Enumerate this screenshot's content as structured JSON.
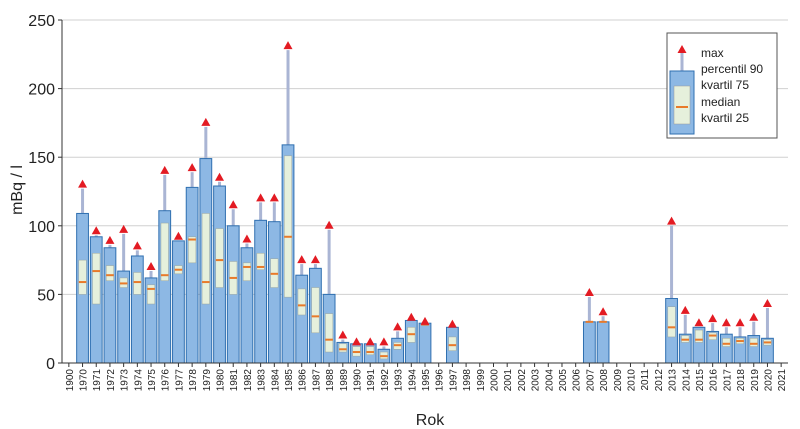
{
  "chart_data": {
    "type": "box",
    "ylabel": "mBq / l",
    "xlabel": "Rok",
    "ylim": [
      0,
      250
    ],
    "yticks": [
      0,
      50,
      100,
      150,
      200,
      250
    ],
    "categories": [
      "1900",
      "1970",
      "1971",
      "1972",
      "1973",
      "1974",
      "1975",
      "1976",
      "1977",
      "1978",
      "1979",
      "1980",
      "1981",
      "1982",
      "1983",
      "1984",
      "1985",
      "1986",
      "1987",
      "1988",
      "1989",
      "1990",
      "1991",
      "1992",
      "1993",
      "1994",
      "1995",
      "1996",
      "1997",
      "1998",
      "1999",
      "2000",
      "2001",
      "2002",
      "2003",
      "2004",
      "2005",
      "2006",
      "2007",
      "2008",
      "2009",
      "2010",
      "2011",
      "2012",
      "2013",
      "2014",
      "2015",
      "2016",
      "2017",
      "2018",
      "2019",
      "2020",
      "2021"
    ],
    "legend": {
      "position": "top-right",
      "entries": [
        "max",
        "percentil 90",
        "kvartil 75",
        "median",
        "kvartil 25"
      ]
    },
    "series": [
      {
        "year": "1970",
        "max": 130,
        "p90": 109,
        "q75": 75,
        "median": 59,
        "q25": 50
      },
      {
        "year": "1971",
        "max": 96,
        "p90": 92,
        "q75": 80,
        "median": 67,
        "q25": 43
      },
      {
        "year": "1972",
        "max": 89,
        "p90": 84,
        "q75": 71,
        "median": 64,
        "q25": 60
      },
      {
        "year": "1973",
        "max": 97,
        "p90": 67,
        "q75": 62,
        "median": 58,
        "q25": 55
      },
      {
        "year": "1974",
        "max": 85,
        "p90": 78,
        "q75": 66,
        "median": 59,
        "q25": 50
      },
      {
        "year": "1975",
        "max": 70,
        "p90": 62,
        "q75": 57,
        "median": 54,
        "q25": 43
      },
      {
        "year": "1976",
        "max": 140,
        "p90": 111,
        "q75": 102,
        "median": 64,
        "q25": 60
      },
      {
        "year": "1977",
        "max": 92,
        "p90": 89,
        "q75": 71,
        "median": 68,
        "q25": 65
      },
      {
        "year": "1978",
        "max": 142,
        "p90": 128,
        "q75": 92,
        "median": 90,
        "q25": 73
      },
      {
        "year": "1979",
        "max": 175,
        "p90": 149,
        "q75": 109,
        "median": 59,
        "q25": 43
      },
      {
        "year": "1980",
        "max": 135,
        "p90": 129,
        "q75": 98,
        "median": 75,
        "q25": 55
      },
      {
        "year": "1981",
        "max": 115,
        "p90": 100,
        "q75": 74,
        "median": 62,
        "q25": 50
      },
      {
        "year": "1982",
        "max": 90,
        "p90": 84,
        "q75": 73,
        "median": 70,
        "q25": 60
      },
      {
        "year": "1983",
        "max": 120,
        "p90": 104,
        "q75": 80,
        "median": 70,
        "q25": 68
      },
      {
        "year": "1984",
        "max": 120,
        "p90": 103,
        "q75": 76,
        "median": 65,
        "q25": 55
      },
      {
        "year": "1985",
        "max": 231,
        "p90": 159,
        "q75": 151,
        "median": 92,
        "q25": 48
      },
      {
        "year": "1986",
        "max": 75,
        "p90": 64,
        "q75": 54,
        "median": 42,
        "q25": 35
      },
      {
        "year": "1987",
        "max": 75,
        "p90": 69,
        "q75": 55,
        "median": 34,
        "q25": 22
      },
      {
        "year": "1988",
        "max": 100,
        "p90": 50,
        "q75": 36,
        "median": 17,
        "q25": 8
      },
      {
        "year": "1989",
        "max": 20,
        "p90": 15,
        "q75": 14,
        "median": 10,
        "q25": 8
      },
      {
        "year": "1990",
        "max": 15,
        "p90": 14,
        "q75": 12,
        "median": 8,
        "q25": 5
      },
      {
        "year": "1991",
        "max": 15,
        "p90": 14,
        "q75": 12,
        "median": 8,
        "q25": 6
      },
      {
        "year": "1992",
        "max": 15,
        "p90": 10,
        "q75": 8,
        "median": 5,
        "q25": 3
      },
      {
        "year": "1993",
        "max": 26,
        "p90": 18,
        "q75": 15,
        "median": 13,
        "q25": 10
      },
      {
        "year": "1994",
        "max": 33,
        "p90": 31,
        "q75": 26,
        "median": 21,
        "q25": 15
      },
      {
        "year": "1995",
        "max": 30,
        "p90": 29,
        "q75": 29,
        "median": 28,
        "q25": 28
      },
      {
        "year": "1997",
        "max": 28,
        "p90": 26,
        "q75": 19,
        "median": 13,
        "q25": 9
      },
      {
        "year": "2007",
        "max": 51,
        "p90": 30,
        "q75": 30,
        "median": 30,
        "q25": 30
      },
      {
        "year": "2008",
        "max": 37,
        "p90": 30,
        "q75": 30,
        "median": 30,
        "q25": 30
      },
      {
        "year": "2013",
        "max": 103,
        "p90": 47,
        "q75": 41,
        "median": 26,
        "q25": 19
      },
      {
        "year": "2014",
        "max": 38,
        "p90": 21,
        "q75": 20,
        "median": 17,
        "q25": 15
      },
      {
        "year": "2015",
        "max": 29,
        "p90": 26,
        "q75": 24,
        "median": 17,
        "q25": 15
      },
      {
        "year": "2016",
        "max": 32,
        "p90": 23,
        "q75": 22,
        "median": 20,
        "q25": 17
      },
      {
        "year": "2017",
        "max": 29,
        "p90": 21,
        "q75": 18,
        "median": 14,
        "q25": 12
      },
      {
        "year": "2018",
        "max": 29,
        "p90": 19,
        "q75": 18,
        "median": 16,
        "q25": 14
      },
      {
        "year": "2019",
        "max": 33,
        "p90": 20,
        "q75": 18,
        "median": 14,
        "q25": 12
      },
      {
        "year": "2020",
        "max": 43,
        "p90": 18,
        "q75": 17,
        "median": 15,
        "q25": 13
      }
    ]
  },
  "colors": {
    "bar_fill": "#8db8e4",
    "bar_stroke": "#2f6fb0",
    "iqr_fill": "#e6f0dc",
    "median": "#e87a2a",
    "max_marker": "#e31b23",
    "whisker": "#aab5d4",
    "axis": "#333333"
  }
}
